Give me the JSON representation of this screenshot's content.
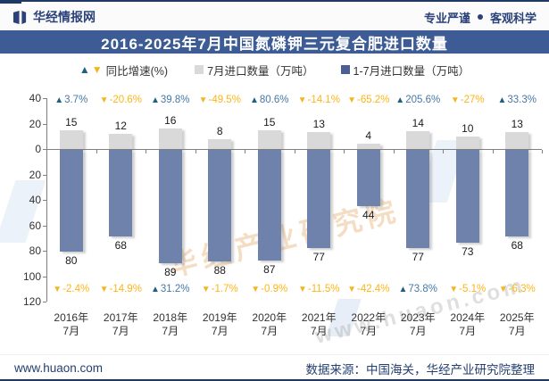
{
  "header": {
    "brand": "华经情报网",
    "slogan_left": "专业严谨",
    "slogan_right": "客观科学"
  },
  "title": "2016-2025年7月中国氮磷钾三元复合肥进口数量",
  "legend": {
    "items": [
      {
        "label": "同比增速(%)",
        "marker": "triangles"
      },
      {
        "label": "7月进口数量（万吨）",
        "marker": "square",
        "color": "#D9D9D9"
      },
      {
        "label": "1-7月进口数量（万吨）",
        "marker": "square",
        "color": "#4A5F94"
      }
    ]
  },
  "chart_data": {
    "type": "bar",
    "orientation": "mirrored-vertical",
    "categories": [
      {
        "year": "2016年",
        "month": "7月"
      },
      {
        "year": "2017年",
        "month": "7月"
      },
      {
        "year": "2018年",
        "month": "7月"
      },
      {
        "year": "2019年",
        "month": "7月"
      },
      {
        "year": "2020年",
        "month": "7月"
      },
      {
        "year": "2021年",
        "month": "7月"
      },
      {
        "year": "2022年",
        "month": "7月"
      },
      {
        "year": "2023年",
        "month": "7月"
      },
      {
        "year": "2024年",
        "month": "7月"
      },
      {
        "year": "2025年",
        "month": "7月"
      }
    ],
    "series": [
      {
        "name": "7月进口数量（万吨）",
        "direction": "up",
        "color": "#D9D9D9",
        "values": [
          15,
          12,
          16,
          8,
          15,
          13,
          4,
          14,
          10,
          13
        ]
      },
      {
        "name": "1-7月进口数量（万吨）",
        "direction": "down",
        "color": "#6E82AC",
        "values": [
          80,
          68,
          89,
          88,
          87,
          77,
          44,
          77,
          73,
          68
        ]
      }
    ],
    "yoy_top": {
      "name": "同比增速(%) — 7月",
      "values": [
        "3.7%",
        "-20.6%",
        "39.8%",
        "-49.5%",
        "80.6%",
        "-14.1%",
        "-65.2%",
        "205.6%",
        "-27%",
        "33.3%"
      ]
    },
    "yoy_bottom": {
      "name": "同比增速(%) — 1-7月",
      "values": [
        "-2.4%",
        "-14.9%",
        "31.2%",
        "-1.7%",
        "-0.9%",
        "-11.5%",
        "-42.4%",
        "73.8%",
        "-5.1%",
        "-6.3%"
      ]
    },
    "y_axis": {
      "ticks": [
        "40",
        "20",
        "0",
        "20",
        "40",
        "60",
        "80",
        "100",
        "120"
      ],
      "up_max": 40,
      "down_max": 120
    },
    "grid": false,
    "legend_position": "top"
  },
  "colors": {
    "title_bar": "#3D5C95",
    "navy": "#1E3964",
    "up_triangle": "#1E6080",
    "up_text": "#4678A8",
    "down_triangle": "#F5B51E",
    "down_text": "#FDB515",
    "axis": "#808080",
    "july_bar": "#D9D9D9",
    "cum_bar": "#6E82AC"
  },
  "watermarks": {
    "orange_text": "华经产业研究院",
    "gray_text": "www.huaon.com"
  },
  "footer": {
    "site": "www.huaon.com",
    "source": "数据来源：中国海关，华经产业研究院整理"
  }
}
